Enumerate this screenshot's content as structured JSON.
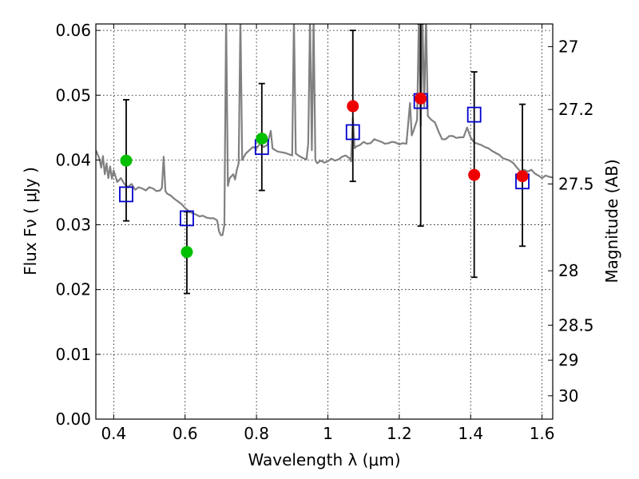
{
  "chart_data": {
    "type": "scatter",
    "xlabel": "Wavelength  λ (μm)",
    "ylabel": "Flux  Fν  ( μJy )",
    "y2label": "Magnitude (AB)",
    "xlim": [
      0.35,
      1.63
    ],
    "ylim": [
      0.0,
      0.061
    ],
    "grid": true,
    "legend": "none",
    "x_ticks": [
      0.4,
      0.6,
      0.8,
      1.0,
      1.2,
      1.4,
      1.6
    ],
    "x_tick_labels": [
      "0.4",
      "0.6",
      "0.8",
      "1",
      "1.2",
      "1.4",
      "1.6"
    ],
    "y_ticks": [
      0.0,
      0.01,
      0.02,
      0.03,
      0.04,
      0.05,
      0.06
    ],
    "y_tick_labels": [
      "0.00",
      "0.01",
      "0.02",
      "0.03",
      "0.04",
      "0.05",
      "0.06"
    ],
    "y2_ticks": [
      {
        "label": "27",
        "flux": 0.0575
      },
      {
        "label": "27.2",
        "flux": 0.0478
      },
      {
        "label": "27.5",
        "flux": 0.0363
      },
      {
        "label": "28",
        "flux": 0.0229
      },
      {
        "label": "28.5",
        "flux": 0.0145
      },
      {
        "label": "29",
        "flux": 0.0091
      },
      {
        "label": "30",
        "flux": 0.0036
      }
    ],
    "series": [
      {
        "kind": "line",
        "color": "#808080",
        "points": [
          [
            0.35,
            0.0415
          ],
          [
            0.36,
            0.0402
          ],
          [
            0.365,
            0.0388
          ],
          [
            0.37,
            0.0406
          ],
          [
            0.375,
            0.0378
          ],
          [
            0.38,
            0.0395
          ],
          [
            0.385,
            0.0372
          ],
          [
            0.39,
            0.039
          ],
          [
            0.395,
            0.0371
          ],
          [
            0.4,
            0.0384
          ],
          [
            0.41,
            0.0366
          ],
          [
            0.42,
            0.0372
          ],
          [
            0.43,
            0.0363
          ],
          [
            0.44,
            0.0358
          ],
          [
            0.45,
            0.0363
          ],
          [
            0.46,
            0.0354
          ],
          [
            0.47,
            0.0358
          ],
          [
            0.48,
            0.0356
          ],
          [
            0.49,
            0.0353
          ],
          [
            0.5,
            0.0358
          ],
          [
            0.51,
            0.0356
          ],
          [
            0.52,
            0.0352
          ],
          [
            0.53,
            0.0353
          ],
          [
            0.535,
            0.0357
          ],
          [
            0.54,
            0.0405
          ],
          [
            0.545,
            0.0352
          ],
          [
            0.55,
            0.0348
          ],
          [
            0.56,
            0.0345
          ],
          [
            0.57,
            0.034
          ],
          [
            0.58,
            0.0336
          ],
          [
            0.59,
            0.0332
          ],
          [
            0.6,
            0.0326
          ],
          [
            0.61,
            0.0321
          ],
          [
            0.62,
            0.0318
          ],
          [
            0.63,
            0.0316
          ],
          [
            0.64,
            0.0313
          ],
          [
            0.65,
            0.0314
          ],
          [
            0.66,
            0.0311
          ],
          [
            0.67,
            0.031
          ],
          [
            0.68,
            0.031
          ],
          [
            0.69,
            0.0307
          ],
          [
            0.695,
            0.029
          ],
          [
            0.7,
            0.0284
          ],
          [
            0.705,
            0.0284
          ],
          [
            0.71,
            0.03
          ],
          [
            0.715,
            0.062
          ],
          [
            0.72,
            0.036
          ],
          [
            0.725,
            0.0372
          ],
          [
            0.73,
            0.0375
          ],
          [
            0.735,
            0.0378
          ],
          [
            0.74,
            0.037
          ],
          [
            0.745,
            0.0385
          ],
          [
            0.75,
            0.0395
          ],
          [
            0.755,
            0.062
          ],
          [
            0.76,
            0.04
          ],
          [
            0.77,
            0.041
          ],
          [
            0.78,
            0.0415
          ],
          [
            0.79,
            0.042
          ],
          [
            0.8,
            0.0418
          ],
          [
            0.81,
            0.0425
          ],
          [
            0.82,
            0.042
          ],
          [
            0.83,
            0.0423
          ],
          [
            0.84,
            0.0445
          ],
          [
            0.845,
            0.0418
          ],
          [
            0.85,
            0.0416
          ],
          [
            0.86,
            0.0413
          ],
          [
            0.87,
            0.0412
          ],
          [
            0.88,
            0.0411
          ],
          [
            0.89,
            0.0409
          ],
          [
            0.9,
            0.0407
          ],
          [
            0.905,
            0.062
          ],
          [
            0.91,
            0.041
          ],
          [
            0.92,
            0.0406
          ],
          [
            0.93,
            0.0403
          ],
          [
            0.94,
            0.0401
          ],
          [
            0.945,
            0.0425
          ],
          [
            0.95,
            0.062
          ],
          [
            0.955,
            0.0415
          ],
          [
            0.96,
            0.062
          ],
          [
            0.965,
            0.04
          ],
          [
            0.97,
            0.0395
          ],
          [
            0.98,
            0.0399
          ],
          [
            0.99,
            0.0396
          ],
          [
            1.0,
            0.0398
          ],
          [
            1.01,
            0.0402
          ],
          [
            1.02,
            0.0399
          ],
          [
            1.03,
            0.0401
          ],
          [
            1.04,
            0.0405
          ],
          [
            1.05,
            0.0407
          ],
          [
            1.06,
            0.0403
          ],
          [
            1.065,
            0.0398
          ],
          [
            1.07,
            0.0465
          ],
          [
            1.075,
            0.0418
          ],
          [
            1.08,
            0.0421
          ],
          [
            1.09,
            0.0423
          ],
          [
            1.1,
            0.0428
          ],
          [
            1.11,
            0.0425
          ],
          [
            1.12,
            0.0426
          ],
          [
            1.13,
            0.0432
          ],
          [
            1.14,
            0.043
          ],
          [
            1.15,
            0.0428
          ],
          [
            1.16,
            0.0425
          ],
          [
            1.17,
            0.0426
          ],
          [
            1.18,
            0.0428
          ],
          [
            1.19,
            0.0427
          ],
          [
            1.2,
            0.0424
          ],
          [
            1.21,
            0.0426
          ],
          [
            1.22,
            0.0425
          ],
          [
            1.23,
            0.0488
          ],
          [
            1.235,
            0.0438
          ],
          [
            1.24,
            0.0445
          ],
          [
            1.25,
            0.0462
          ],
          [
            1.255,
            0.062
          ],
          [
            1.26,
            0.0452
          ],
          [
            1.265,
            0.062
          ],
          [
            1.27,
            0.0482
          ],
          [
            1.275,
            0.062
          ],
          [
            1.28,
            0.0468
          ],
          [
            1.29,
            0.0462
          ],
          [
            1.3,
            0.0458
          ],
          [
            1.31,
            0.0444
          ],
          [
            1.32,
            0.0432
          ],
          [
            1.33,
            0.0432
          ],
          [
            1.34,
            0.0437
          ],
          [
            1.35,
            0.0437
          ],
          [
            1.36,
            0.0434
          ],
          [
            1.37,
            0.0435
          ],
          [
            1.38,
            0.0435
          ],
          [
            1.39,
            0.045
          ],
          [
            1.4,
            0.0435
          ],
          [
            1.41,
            0.0427
          ],
          [
            1.42,
            0.0425
          ],
          [
            1.43,
            0.0423
          ],
          [
            1.44,
            0.042
          ],
          [
            1.45,
            0.0418
          ],
          [
            1.46,
            0.0414
          ],
          [
            1.47,
            0.0411
          ],
          [
            1.48,
            0.0408
          ],
          [
            1.49,
            0.0403
          ],
          [
            1.5,
            0.0401
          ],
          [
            1.51,
            0.0399
          ],
          [
            1.52,
            0.0395
          ],
          [
            1.53,
            0.0388
          ],
          [
            1.54,
            0.0382
          ],
          [
            1.55,
            0.0385
          ],
          [
            1.56,
            0.0382
          ],
          [
            1.57,
            0.0385
          ],
          [
            1.58,
            0.0379
          ],
          [
            1.59,
            0.0376
          ],
          [
            1.6,
            0.0372
          ],
          [
            1.61,
            0.0376
          ],
          [
            1.62,
            0.0374
          ],
          [
            1.63,
            0.0373
          ]
        ]
      },
      {
        "kind": "errorbar",
        "color": "#000000",
        "points": [
          {
            "x": 0.435,
            "lo": 0.0306,
            "hi": 0.0493
          },
          {
            "x": 0.605,
            "lo": 0.0194,
            "hi": 0.032
          },
          {
            "x": 0.815,
            "lo": 0.0353,
            "hi": 0.0518
          },
          {
            "x": 1.07,
            "lo": 0.0367,
            "hi": 0.06
          },
          {
            "x": 1.26,
            "lo": 0.0298,
            "hi": 0.0615
          },
          {
            "x": 1.41,
            "lo": 0.0219,
            "hi": 0.0536
          },
          {
            "x": 1.545,
            "lo": 0.0267,
            "hi": 0.0486
          }
        ]
      },
      {
        "kind": "square",
        "color": "#0000cc",
        "points": [
          [
            0.435,
            0.0347
          ],
          [
            0.605,
            0.031
          ],
          [
            0.815,
            0.042
          ],
          [
            1.07,
            0.0443
          ],
          [
            1.26,
            0.0491
          ],
          [
            1.41,
            0.047
          ],
          [
            1.545,
            0.0367
          ]
        ]
      },
      {
        "kind": "circle",
        "color": "#00c000",
        "points": [
          [
            0.435,
            0.0399
          ],
          [
            0.605,
            0.0258
          ],
          [
            0.815,
            0.0433
          ]
        ]
      },
      {
        "kind": "circle",
        "color": "#ee0000",
        "points": [
          [
            1.07,
            0.0483
          ],
          [
            1.26,
            0.0495
          ],
          [
            1.41,
            0.0377
          ],
          [
            1.545,
            0.0375
          ]
        ]
      }
    ]
  }
}
